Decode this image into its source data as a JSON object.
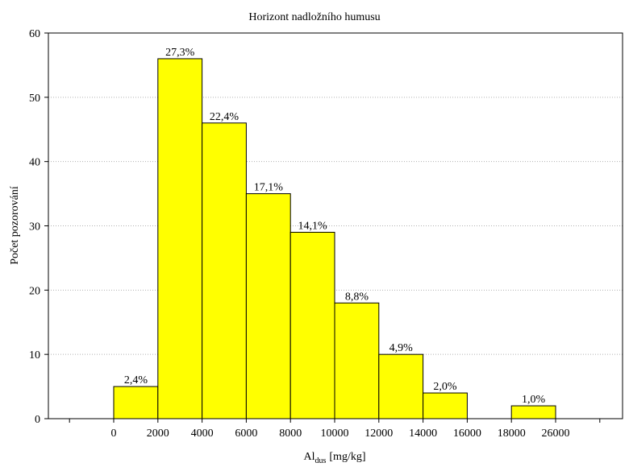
{
  "chart_data": {
    "type": "bar",
    "title": "Horizont nadložního humusu",
    "ylabel": "Počet pozorování",
    "xlabel": {
      "main": "Al",
      "subscript": "dus",
      "unit": "[mg/kg]"
    },
    "ylim": [
      0,
      60
    ],
    "yticks": [
      0,
      10,
      20,
      30,
      40,
      50,
      60
    ],
    "grid": true,
    "xtick_labels": [
      "0",
      "2000",
      "4000",
      "6000",
      "8000",
      "10000",
      "12000",
      "14000",
      "16000",
      "18000",
      "26000"
    ],
    "bins": [
      {
        "from": "0",
        "to": "2000",
        "count": 5,
        "label": "2,4%"
      },
      {
        "from": "2000",
        "to": "4000",
        "count": 56,
        "label": "27,3%"
      },
      {
        "from": "4000",
        "to": "6000",
        "count": 46,
        "label": "22,4%"
      },
      {
        "from": "6000",
        "to": "8000",
        "count": 35,
        "label": "17,1%"
      },
      {
        "from": "8000",
        "to": "10000",
        "count": 29,
        "label": "14,1%"
      },
      {
        "from": "10000",
        "to": "12000",
        "count": 18,
        "label": "8,8%"
      },
      {
        "from": "12000",
        "to": "14000",
        "count": 10,
        "label": "4,9%"
      },
      {
        "from": "14000",
        "to": "16000",
        "count": 4,
        "label": "2,0%"
      },
      {
        "from": "16000",
        "to": "18000",
        "count": 0,
        "label": ""
      },
      {
        "from": "18000",
        "to": "26000",
        "count": 2,
        "label": "1,0%"
      }
    ],
    "colors": {
      "bar_fill": "#ffff00",
      "bar_stroke": "#000000",
      "grid": "#b0b0b0"
    }
  }
}
